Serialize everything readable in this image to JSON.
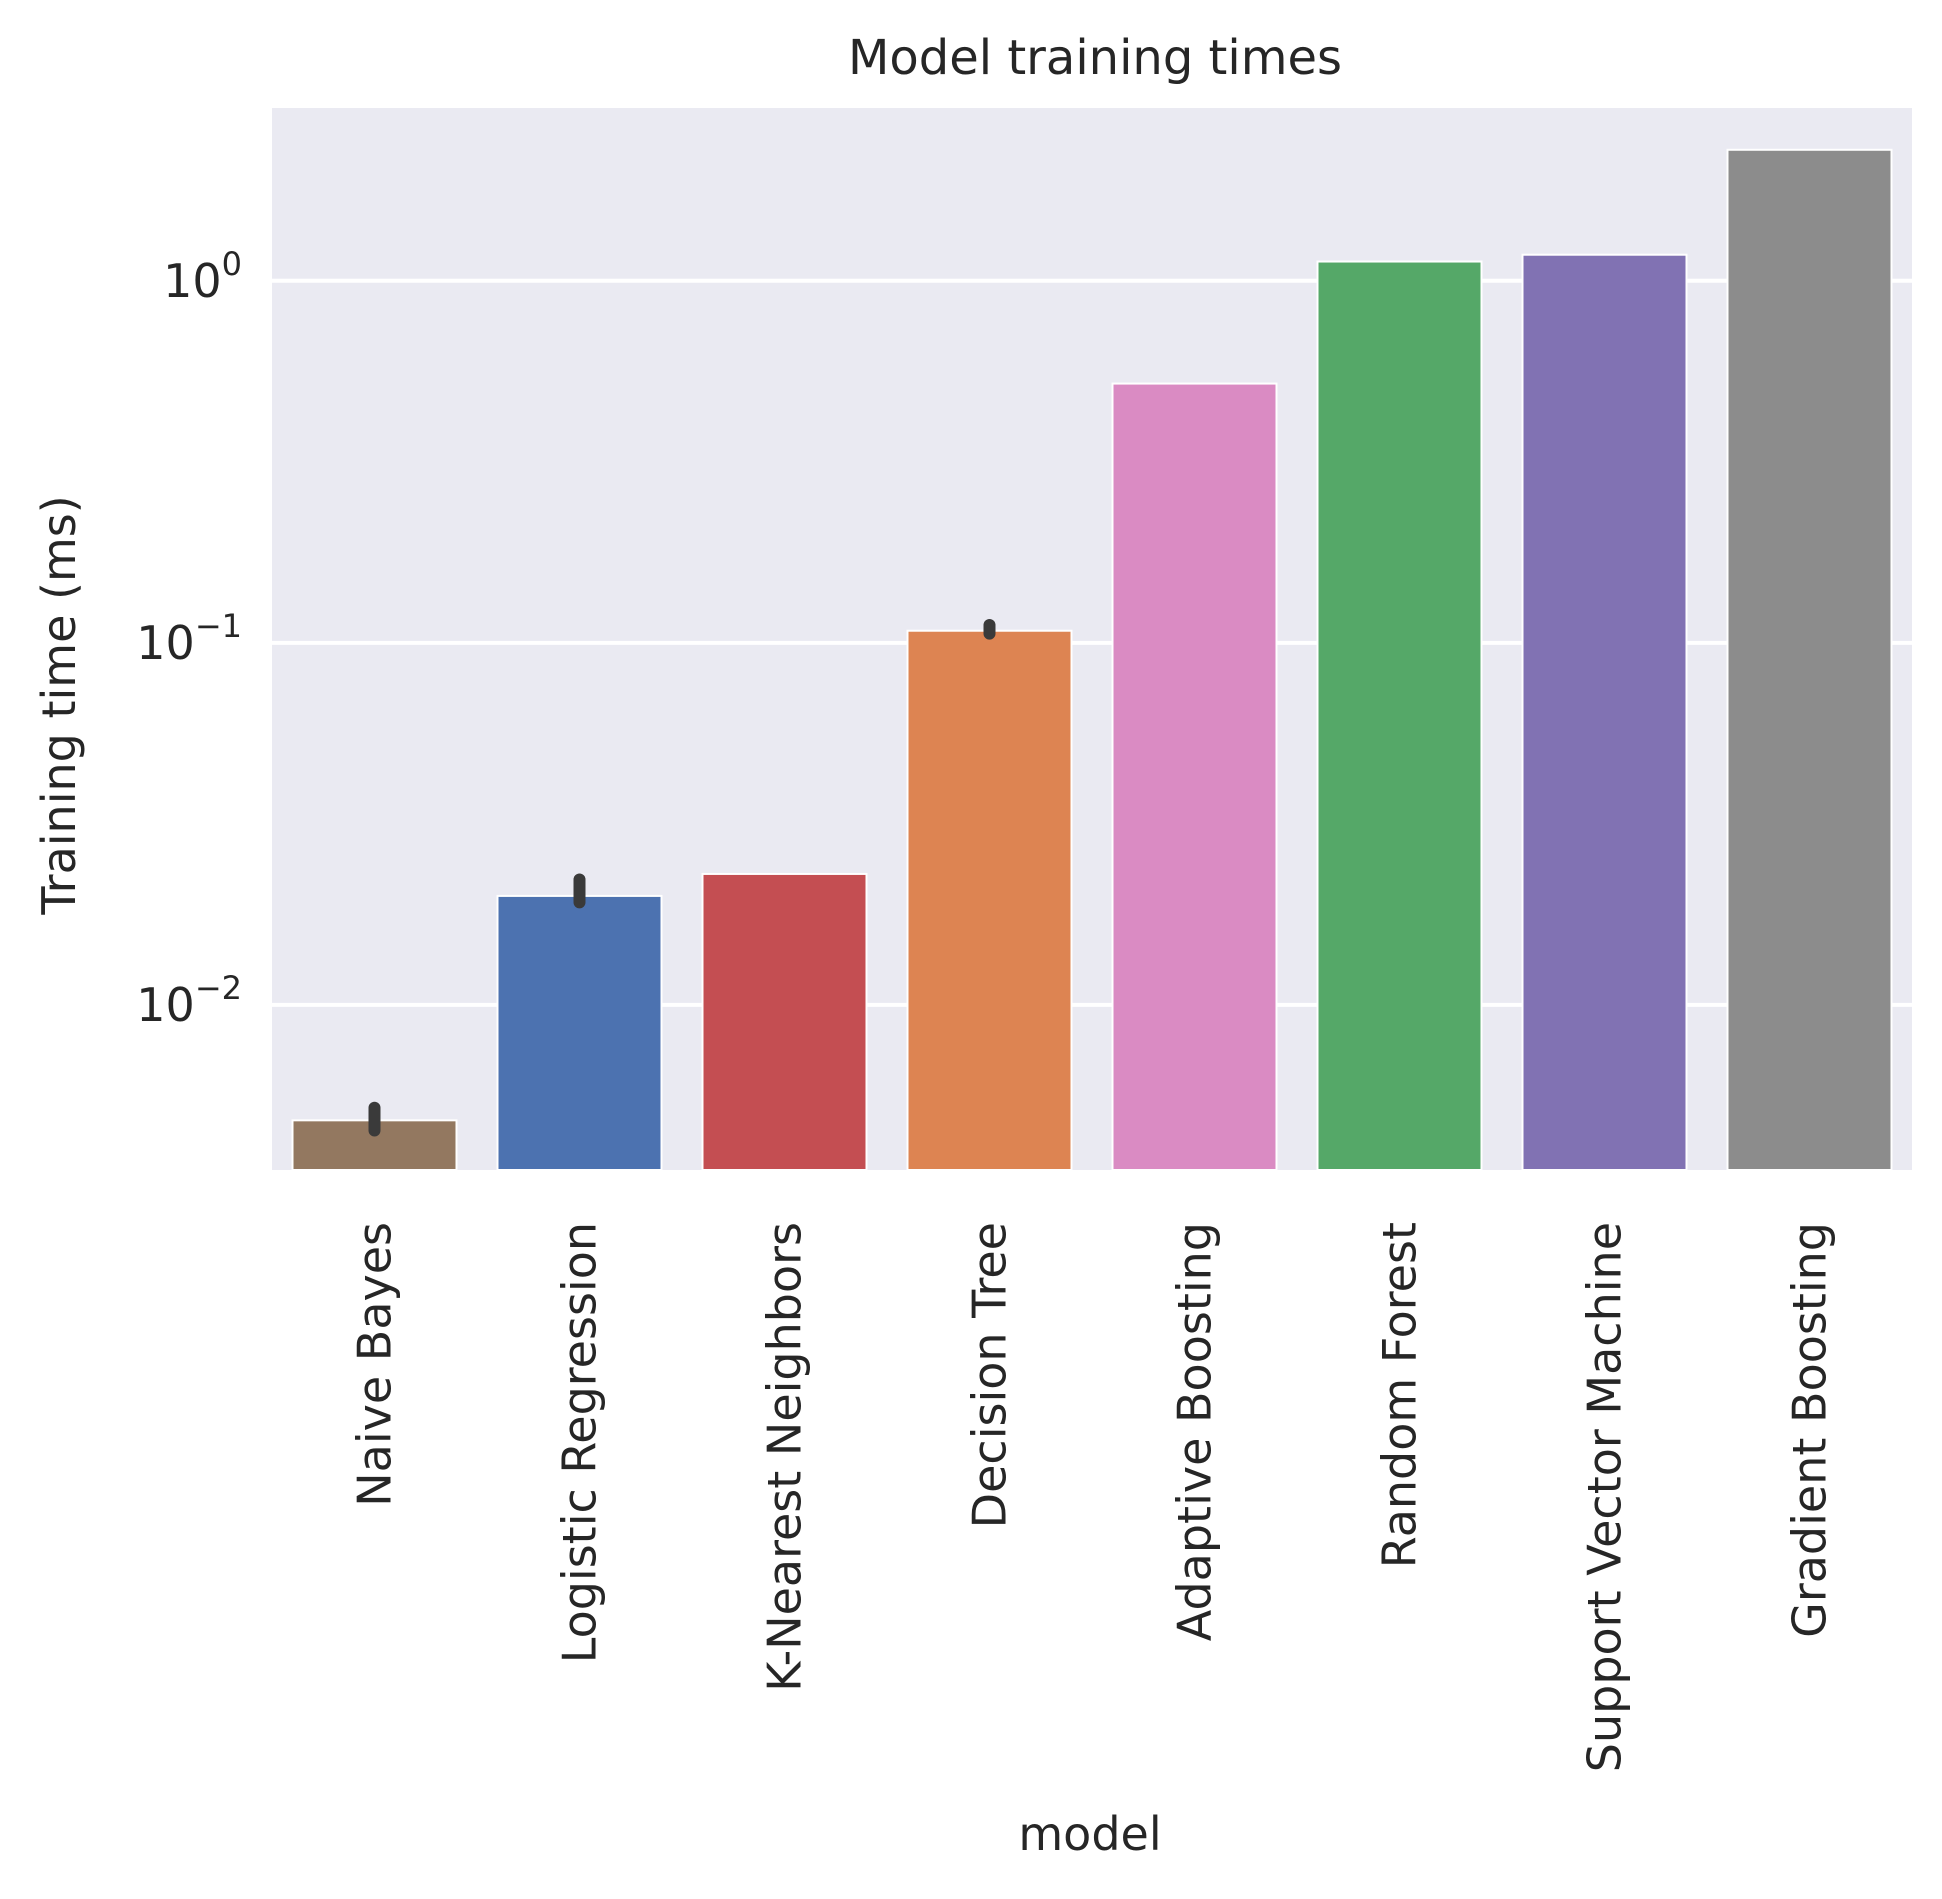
{
  "chart_data": {
    "type": "bar",
    "title": "Model training times",
    "xlabel": "model",
    "ylabel": "Training time (ms)",
    "yscale": "log",
    "ylim": [
      0.0035,
      3.0
    ],
    "yticks": [
      {
        "value": 0.01,
        "base": "10",
        "exp": "−2"
      },
      {
        "value": 0.1,
        "base": "10",
        "exp": "−1"
      },
      {
        "value": 1,
        "base": "10",
        "exp": "0"
      }
    ],
    "grid": true,
    "legend": "none",
    "background_color": "#eaeaf2",
    "grid_color": "#ffffff",
    "categories": [
      "Naive Bayes",
      "Logistic Regression",
      "K-Nearest Neighbors",
      "Decision Tree",
      "Adaptive Boosting",
      "Random Forest",
      "Support Vector Machine",
      "Gradient Boosting"
    ],
    "values": [
      0.0048,
      0.02,
      0.023,
      0.108,
      0.52,
      1.13,
      1.18,
      2.3
    ],
    "errors": [
      [
        0.0045,
        0.0052
      ],
      [
        0.0192,
        0.0222
      ],
      null,
      [
        0.106,
        0.112
      ],
      null,
      null,
      null,
      null
    ],
    "colors": [
      "#937860",
      "#4c72b0",
      "#c44e52",
      "#dd8452",
      "#da8bc3",
      "#55a868",
      "#8172b3",
      "#8c8c8c"
    ]
  }
}
